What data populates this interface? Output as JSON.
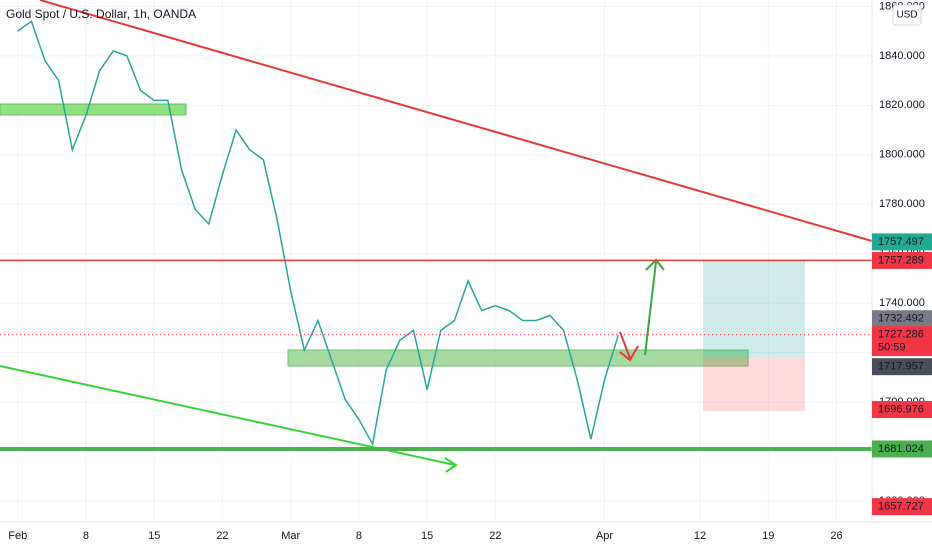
{
  "chart_data": {
    "type": "line",
    "title": "Gold Spot / U.S. Dollar, 1h, OANDA",
    "currency": "USD",
    "x": [
      0,
      1,
      2,
      3,
      4,
      5,
      6,
      7,
      8,
      9,
      10,
      11,
      12,
      13,
      14,
      15,
      16,
      17,
      18,
      19,
      20,
      21,
      22,
      23,
      24,
      25,
      26,
      27,
      28,
      29,
      30,
      31,
      32,
      33,
      34,
      35,
      36,
      37,
      38,
      39,
      40,
      41,
      42,
      43,
      44
    ],
    "series": [
      {
        "color": "#26a69a",
        "values": [
          1850,
          1854,
          1838,
          1830,
          1802,
          1816,
          1834,
          1842,
          1840,
          1826,
          1822,
          1822,
          1794,
          1778,
          1772,
          1792,
          1810,
          1802,
          1798,
          1774,
          1745,
          1721,
          1733,
          1717,
          1701,
          1693,
          1683,
          1713,
          1725,
          1729,
          1705,
          1729,
          1733,
          1749,
          1737,
          1739,
          1737,
          1733,
          1733,
          1735,
          1729,
          1709,
          1685,
          1709,
          1727
        ]
      }
    ],
    "xlim": [
      -1.3,
      62.6
    ],
    "xticks": [
      {
        "value": 0,
        "label": "Feb"
      },
      {
        "value": 5,
        "label": "8"
      },
      {
        "value": 10,
        "label": "15"
      },
      {
        "value": 15,
        "label": "22"
      },
      {
        "value": 20,
        "label": "Mar"
      },
      {
        "value": 25,
        "label": "8"
      },
      {
        "value": 30,
        "label": "15"
      },
      {
        "value": 35,
        "label": "22"
      },
      {
        "value": 43,
        "label": "Apr"
      },
      {
        "value": 50,
        "label": "12"
      },
      {
        "value": 55,
        "label": "19"
      },
      {
        "value": 60,
        "label": "26"
      }
    ],
    "ylim": [
      1651.5,
      1862.6
    ],
    "yticks": [
      {
        "value": 1660,
        "label": "1660.000"
      },
      {
        "value": 1680,
        "label": "1680.000"
      },
      {
        "value": 1700,
        "label": "1700.000"
      },
      {
        "value": 1720,
        "label": "1720.000"
      },
      {
        "value": 1740,
        "label": "1740.000"
      },
      {
        "value": 1760,
        "label": "1760.000"
      },
      {
        "value": 1780,
        "label": "1780.000"
      },
      {
        "value": 1800,
        "label": "1800.000"
      },
      {
        "value": 1820,
        "label": "1820.000"
      },
      {
        "value": 1840,
        "label": "1840.000"
      },
      {
        "value": 1860,
        "label": "1860.000"
      }
    ],
    "grid": true,
    "price_labels": [
      {
        "value": 1757.497,
        "color": "#22ab94"
      },
      {
        "value": 1757.289,
        "color": "#f23645"
      },
      {
        "value": 1732.492,
        "color": "#787b86"
      },
      {
        "value": 1727.286,
        "color": "#f23645",
        "countdown": "50:59"
      },
      {
        "value": 1717.957,
        "color": "#4a4e59"
      },
      {
        "value": 1696.976,
        "color": "#f23645"
      },
      {
        "value": 1681.024,
        "color": "#4caf50"
      },
      {
        "value": 1657.727,
        "color": "#f23645"
      }
    ]
  }
}
